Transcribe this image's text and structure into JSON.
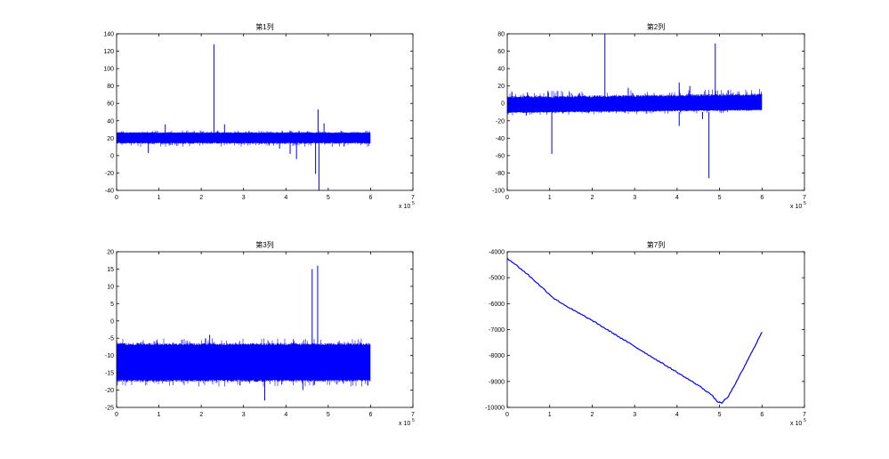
{
  "figure": {
    "background": "#ffffff",
    "line_color": "#0000ff"
  },
  "chart_data": [
    {
      "type": "line",
      "title": "第1列",
      "xlabel": "",
      "ylabel": "",
      "x_range": [
        0,
        600000
      ],
      "xlim": [
        0,
        700000
      ],
      "ylim": [
        -40,
        140
      ],
      "x_ticks": [
        0,
        1,
        2,
        3,
        4,
        5,
        6,
        7
      ],
      "x_multiplier": "x 10",
      "x_exponent": "5",
      "y_ticks": [
        -40,
        -20,
        0,
        20,
        40,
        60,
        80,
        100,
        120,
        140
      ],
      "grid": false,
      "band": {
        "low": 15,
        "high": 26,
        "min_low": 10,
        "max_high": 29
      },
      "spikes": [
        {
          "x": 230000,
          "y": 128
        },
        {
          "x": 470000,
          "y": -21
        },
        {
          "x": 478000,
          "y": -40
        },
        {
          "x": 476000,
          "y": 53
        },
        {
          "x": 410000,
          "y": 2
        },
        {
          "x": 425000,
          "y": -4
        },
        {
          "x": 75000,
          "y": 3
        },
        {
          "x": 115000,
          "y": 36
        },
        {
          "x": 255000,
          "y": 36
        },
        {
          "x": 490000,
          "y": 37
        },
        {
          "x": 385000,
          "y": 8
        }
      ]
    },
    {
      "type": "line",
      "title": "第2列",
      "xlabel": "",
      "ylabel": "",
      "x_range": [
        0,
        600000
      ],
      "xlim": [
        0,
        700000
      ],
      "ylim": [
        -100,
        80
      ],
      "x_ticks": [
        0,
        1,
        2,
        3,
        4,
        5,
        6,
        7
      ],
      "x_multiplier": "x 10",
      "x_exponent": "5",
      "y_ticks": [
        -100,
        -80,
        -60,
        -40,
        -20,
        0,
        20,
        40,
        60,
        80
      ],
      "grid": false,
      "band": {
        "low": -10,
        "high": 6,
        "slope": 3,
        "min_low": -14,
        "max_high": 14
      },
      "spikes": [
        {
          "x": 230000,
          "y": 80
        },
        {
          "x": 490000,
          "y": 69
        },
        {
          "x": 105000,
          "y": -58
        },
        {
          "x": 475000,
          "y": -86
        },
        {
          "x": 405000,
          "y": -26
        },
        {
          "x": 405000,
          "y": 24
        },
        {
          "x": 430000,
          "y": 20
        },
        {
          "x": 285000,
          "y": 18
        },
        {
          "x": 520000,
          "y": 15
        },
        {
          "x": 460000,
          "y": -18
        },
        {
          "x": 45000,
          "y": -14
        }
      ]
    },
    {
      "type": "line",
      "title": "第3列",
      "xlabel": "",
      "ylabel": "",
      "x_range": [
        0,
        600000
      ],
      "xlim": [
        0,
        700000
      ],
      "ylim": [
        -25,
        20
      ],
      "x_ticks": [
        0,
        1,
        2,
        3,
        4,
        5,
        6,
        7
      ],
      "x_multiplier": "x 10",
      "x_exponent": "5",
      "y_ticks": [
        -25,
        -20,
        -15,
        -10,
        -5,
        0,
        5,
        10,
        15,
        20
      ],
      "grid": false,
      "band": {
        "low": -17,
        "high": -7,
        "min_low": -19,
        "max_high": -5
      },
      "spikes": [
        {
          "x": 462000,
          "y": 15
        },
        {
          "x": 475000,
          "y": 16
        },
        {
          "x": 350000,
          "y": -23
        },
        {
          "x": 220000,
          "y": -4
        },
        {
          "x": 440000,
          "y": -20
        }
      ]
    },
    {
      "type": "line",
      "title": "第7列",
      "xlabel": "",
      "ylabel": "",
      "xlim": [
        0,
        700000
      ],
      "ylim": [
        -10000,
        -4000
      ],
      "x_ticks": [
        0,
        1,
        2,
        3,
        4,
        5,
        6,
        7
      ],
      "x_multiplier": "x 10",
      "x_exponent": "5",
      "y_ticks": [
        -10000,
        -9000,
        -8000,
        -7000,
        -6000,
        -5000,
        -4000
      ],
      "grid": false,
      "x": [
        0,
        20000,
        50000,
        80000,
        110000,
        150000,
        200000,
        250000,
        300000,
        350000,
        400000,
        450000,
        480000,
        495000,
        505000,
        520000,
        550000,
        600000
      ],
      "y": [
        -4250,
        -4500,
        -4900,
        -5350,
        -5800,
        -6200,
        -6650,
        -7150,
        -7650,
        -8150,
        -8650,
        -9150,
        -9500,
        -9780,
        -9830,
        -9600,
        -8700,
        -7100
      ]
    }
  ]
}
